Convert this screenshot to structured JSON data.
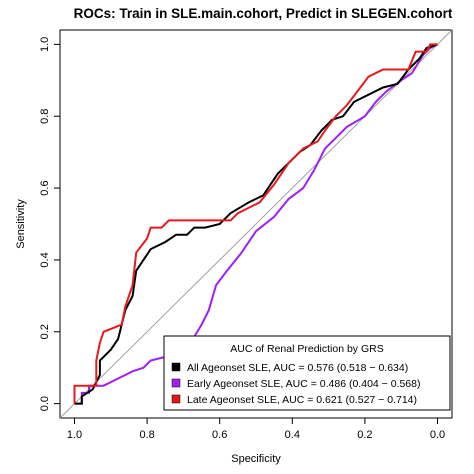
{
  "chart_data": {
    "type": "line",
    "title": "ROCs: Train in SLE.main.cohort, Predict in SLEGEN.cohort",
    "xlabel": "Specificity",
    "ylabel": "Sensitivity",
    "xlim": [
      1.04,
      -0.04
    ],
    "ylim": [
      -0.04,
      1.04
    ],
    "x_reversed": true,
    "x_ticks": [
      1.0,
      0.8,
      0.6,
      0.4,
      0.2,
      0.0
    ],
    "x_tick_labels": [
      "1.0",
      "0.8",
      "0.6",
      "0.4",
      "0.2",
      "0.0"
    ],
    "y_ticks": [
      0.0,
      0.2,
      0.4,
      0.6,
      0.8,
      1.0
    ],
    "y_tick_labels": [
      "0.0",
      "0.2",
      "0.4",
      "0.6",
      "0.8",
      "1.0"
    ],
    "grid": false,
    "reference_line": true,
    "legend": {
      "title": "AUC of Renal Prediction by GRS",
      "position": "bottom-right"
    },
    "series": [
      {
        "name": "All Ageonset SLE, AUC = 0.576 (0.518 − 0.634)",
        "color": "#000000",
        "points": [
          [
            1.0,
            0.0
          ],
          [
            0.98,
            0.0
          ],
          [
            0.98,
            0.02
          ],
          [
            0.95,
            0.04
          ],
          [
            0.93,
            0.08
          ],
          [
            0.93,
            0.12
          ],
          [
            0.9,
            0.15
          ],
          [
            0.88,
            0.18
          ],
          [
            0.86,
            0.26
          ],
          [
            0.84,
            0.3
          ],
          [
            0.83,
            0.37
          ],
          [
            0.81,
            0.4
          ],
          [
            0.79,
            0.43
          ],
          [
            0.75,
            0.45
          ],
          [
            0.72,
            0.47
          ],
          [
            0.69,
            0.47
          ],
          [
            0.67,
            0.49
          ],
          [
            0.64,
            0.49
          ],
          [
            0.6,
            0.5
          ],
          [
            0.57,
            0.53
          ],
          [
            0.52,
            0.56
          ],
          [
            0.48,
            0.58
          ],
          [
            0.44,
            0.64
          ],
          [
            0.41,
            0.67
          ],
          [
            0.38,
            0.7
          ],
          [
            0.35,
            0.72
          ],
          [
            0.32,
            0.76
          ],
          [
            0.29,
            0.79
          ],
          [
            0.26,
            0.8
          ],
          [
            0.23,
            0.84
          ],
          [
            0.19,
            0.86
          ],
          [
            0.15,
            0.88
          ],
          [
            0.11,
            0.89
          ],
          [
            0.08,
            0.93
          ],
          [
            0.05,
            0.96
          ],
          [
            0.03,
            0.99
          ],
          [
            0.0,
            1.0
          ]
        ]
      },
      {
        "name": "Early Ageonset SLE, AUC = 0.486 (0.404 − 0.568)",
        "color": "#A020F0",
        "points": [
          [
            1.0,
            0.0
          ],
          [
            0.98,
            0.0
          ],
          [
            0.98,
            0.03
          ],
          [
            0.96,
            0.03
          ],
          [
            0.96,
            0.05
          ],
          [
            0.92,
            0.05
          ],
          [
            0.9,
            0.06
          ],
          [
            0.88,
            0.07
          ],
          [
            0.84,
            0.09
          ],
          [
            0.81,
            0.1
          ],
          [
            0.79,
            0.12
          ],
          [
            0.75,
            0.13
          ],
          [
            0.72,
            0.14
          ],
          [
            0.68,
            0.17
          ],
          [
            0.65,
            0.22
          ],
          [
            0.63,
            0.26
          ],
          [
            0.61,
            0.33
          ],
          [
            0.58,
            0.37
          ],
          [
            0.54,
            0.42
          ],
          [
            0.5,
            0.48
          ],
          [
            0.45,
            0.52
          ],
          [
            0.41,
            0.57
          ],
          [
            0.37,
            0.6
          ],
          [
            0.34,
            0.65
          ],
          [
            0.31,
            0.71
          ],
          [
            0.28,
            0.74
          ],
          [
            0.25,
            0.77
          ],
          [
            0.2,
            0.8
          ],
          [
            0.17,
            0.84
          ],
          [
            0.14,
            0.87
          ],
          [
            0.1,
            0.9
          ],
          [
            0.07,
            0.92
          ],
          [
            0.04,
            0.97
          ],
          [
            0.02,
            0.99
          ],
          [
            0.0,
            1.0
          ]
        ]
      },
      {
        "name": "Late Ageonset SLE, AUC = 0.621 (0.527 − 0.714)",
        "color": "#E41A1C",
        "points": [
          [
            1.0,
            0.0
          ],
          [
            1.0,
            0.05
          ],
          [
            0.94,
            0.05
          ],
          [
            0.94,
            0.12
          ],
          [
            0.93,
            0.17
          ],
          [
            0.92,
            0.2
          ],
          [
            0.87,
            0.22
          ],
          [
            0.86,
            0.27
          ],
          [
            0.84,
            0.33
          ],
          [
            0.83,
            0.42
          ],
          [
            0.8,
            0.46
          ],
          [
            0.79,
            0.49
          ],
          [
            0.76,
            0.49
          ],
          [
            0.74,
            0.51
          ],
          [
            0.57,
            0.51
          ],
          [
            0.55,
            0.53
          ],
          [
            0.49,
            0.56
          ],
          [
            0.45,
            0.61
          ],
          [
            0.41,
            0.67
          ],
          [
            0.37,
            0.71
          ],
          [
            0.33,
            0.73
          ],
          [
            0.31,
            0.76
          ],
          [
            0.28,
            0.8
          ],
          [
            0.25,
            0.83
          ],
          [
            0.22,
            0.87
          ],
          [
            0.19,
            0.91
          ],
          [
            0.15,
            0.93
          ],
          [
            0.08,
            0.93
          ],
          [
            0.06,
            0.98
          ],
          [
            0.03,
            0.98
          ],
          [
            0.02,
            1.0
          ],
          [
            0.0,
            1.0
          ]
        ]
      }
    ]
  }
}
